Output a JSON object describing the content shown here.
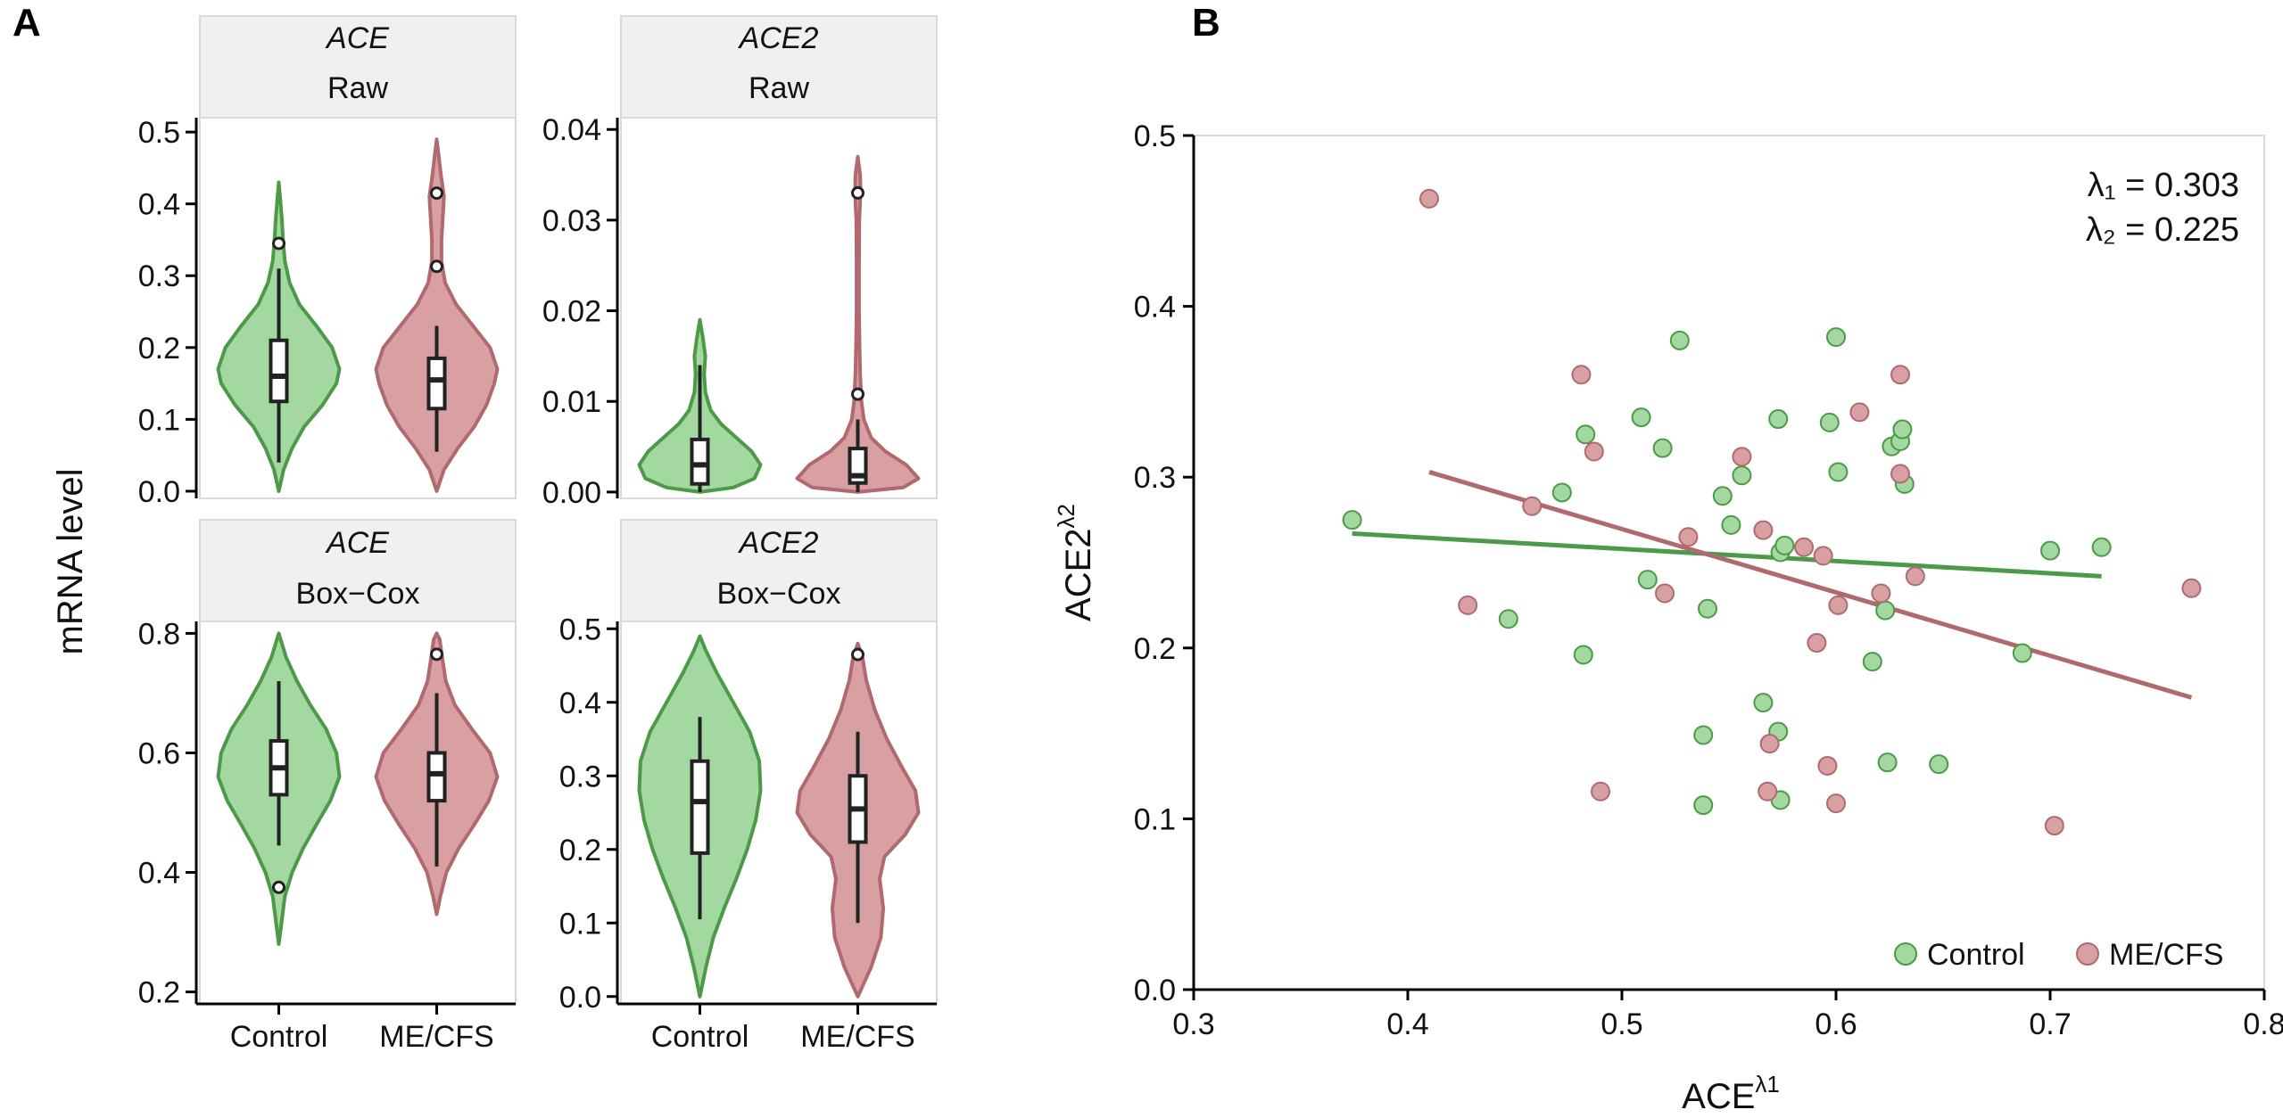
{
  "panel_a": {
    "letter": "A",
    "y_axis_title": "mRNA level",
    "group_labels": [
      "Control",
      "ME/CFS"
    ]
  },
  "panel_b": {
    "letter": "B",
    "lambda1_text": "λ₁ = 0.303",
    "lambda2_text": "λ₂ = 0.225",
    "x_axis_base": "ACE",
    "x_axis_sup": "λ1",
    "y_axis_base": "ACE2",
    "y_axis_sup": "λ2",
    "legend": [
      "Control",
      "ME/CFS"
    ]
  },
  "colors": {
    "control_fill": "#a3d9a0",
    "control_stroke": "#4c9a48",
    "mecfs_fill": "#d9a0a3",
    "mecfs_stroke": "#b06a6e"
  },
  "chart_data": [
    {
      "type": "violin",
      "gene": "ACE",
      "transform": "Raw",
      "categories": [
        "Control",
        "ME/CFS"
      ],
      "ylim": [
        -0.01,
        0.52
      ],
      "yticks": [
        0.0,
        0.1,
        0.2,
        0.3,
        0.4,
        0.5
      ],
      "ytick_labels": [
        "0.0",
        "0.1",
        "0.2",
        "0.3",
        "0.4",
        "0.5"
      ],
      "groups": [
        {
          "name": "Control",
          "min": 0.0,
          "max": 0.43,
          "density": [
            [
              0.0,
              0.0
            ],
            [
              0.03,
              0.08
            ],
            [
              0.06,
              0.22
            ],
            [
              0.09,
              0.42
            ],
            [
              0.12,
              0.72
            ],
            [
              0.15,
              0.95
            ],
            [
              0.17,
              1.0
            ],
            [
              0.2,
              0.88
            ],
            [
              0.23,
              0.62
            ],
            [
              0.26,
              0.34
            ],
            [
              0.29,
              0.18
            ],
            [
              0.32,
              0.1
            ],
            [
              0.35,
              0.07
            ],
            [
              0.38,
              0.05
            ],
            [
              0.41,
              0.02
            ],
            [
              0.43,
              0.0
            ]
          ],
          "box": {
            "q1": 0.125,
            "median": 0.16,
            "q3": 0.21,
            "whisker_low": 0.04,
            "whisker_high": 0.31
          },
          "outliers": [
            0.345
          ]
        },
        {
          "name": "ME/CFS",
          "min": 0.0,
          "max": 0.49,
          "density": [
            [
              0.0,
              0.0
            ],
            [
              0.03,
              0.12
            ],
            [
              0.06,
              0.35
            ],
            [
              0.09,
              0.62
            ],
            [
              0.12,
              0.82
            ],
            [
              0.15,
              0.95
            ],
            [
              0.17,
              1.0
            ],
            [
              0.2,
              0.88
            ],
            [
              0.23,
              0.6
            ],
            [
              0.26,
              0.32
            ],
            [
              0.29,
              0.14
            ],
            [
              0.32,
              0.08
            ],
            [
              0.35,
              0.08
            ],
            [
              0.38,
              0.1
            ],
            [
              0.41,
              0.12
            ],
            [
              0.44,
              0.07
            ],
            [
              0.47,
              0.03
            ],
            [
              0.49,
              0.0
            ]
          ],
          "box": {
            "q1": 0.115,
            "median": 0.155,
            "q3": 0.185,
            "whisker_low": 0.055,
            "whisker_high": 0.23
          },
          "outliers": [
            0.313,
            0.415
          ]
        }
      ]
    },
    {
      "type": "violin",
      "gene": "ACE2",
      "transform": "Raw",
      "categories": [
        "Control",
        "ME/CFS"
      ],
      "ylim": [
        -0.0007,
        0.0413
      ],
      "yticks": [
        0.0,
        0.01,
        0.02,
        0.03,
        0.04
      ],
      "ytick_labels": [
        "0.00",
        "0.01",
        "0.02",
        "0.03",
        "0.04"
      ],
      "groups": [
        {
          "name": "Control",
          "min": 0.0,
          "max": 0.019,
          "density": [
            [
              0.0,
              0.0
            ],
            [
              0.0005,
              0.55
            ],
            [
              0.0015,
              0.9
            ],
            [
              0.003,
              1.0
            ],
            [
              0.0045,
              0.85
            ],
            [
              0.006,
              0.6
            ],
            [
              0.0075,
              0.35
            ],
            [
              0.009,
              0.18
            ],
            [
              0.011,
              0.09
            ],
            [
              0.013,
              0.07
            ],
            [
              0.015,
              0.09
            ],
            [
              0.017,
              0.05
            ],
            [
              0.019,
              0.0
            ]
          ],
          "box": {
            "q1": 0.0009,
            "median": 0.003,
            "q3": 0.0058,
            "whisker_low": 0.0,
            "whisker_high": 0.014
          },
          "outliers": []
        },
        {
          "name": "ME/CFS",
          "min": 0.0,
          "max": 0.037,
          "density": [
            [
              0.0,
              0.0
            ],
            [
              0.0005,
              0.75
            ],
            [
              0.0015,
              1.0
            ],
            [
              0.003,
              0.8
            ],
            [
              0.0045,
              0.45
            ],
            [
              0.006,
              0.22
            ],
            [
              0.008,
              0.1
            ],
            [
              0.01,
              0.06
            ],
            [
              0.013,
              0.04
            ],
            [
              0.016,
              0.03
            ],
            [
              0.02,
              0.02
            ],
            [
              0.025,
              0.02
            ],
            [
              0.03,
              0.025
            ],
            [
              0.033,
              0.045
            ],
            [
              0.035,
              0.04
            ],
            [
              0.037,
              0.0
            ]
          ],
          "box": {
            "q1": 0.001,
            "median": 0.0018,
            "q3": 0.0048,
            "whisker_low": 0.0,
            "whisker_high": 0.008
          },
          "outliers": [
            0.0108,
            0.033
          ]
        }
      ]
    },
    {
      "type": "violin",
      "gene": "ACE",
      "transform": "Box−Cox",
      "categories": [
        "Control",
        "ME/CFS"
      ],
      "ylim": [
        0.18,
        0.82
      ],
      "yticks": [
        0.2,
        0.4,
        0.6,
        0.8
      ],
      "ytick_labels": [
        "0.2",
        "0.4",
        "0.6",
        "0.8"
      ],
      "groups": [
        {
          "name": "Control",
          "min": 0.28,
          "max": 0.8,
          "density": [
            [
              0.28,
              0.0
            ],
            [
              0.32,
              0.05
            ],
            [
              0.36,
              0.1
            ],
            [
              0.4,
              0.22
            ],
            [
              0.44,
              0.4
            ],
            [
              0.48,
              0.62
            ],
            [
              0.52,
              0.85
            ],
            [
              0.56,
              1.0
            ],
            [
              0.6,
              0.95
            ],
            [
              0.64,
              0.78
            ],
            [
              0.68,
              0.52
            ],
            [
              0.72,
              0.3
            ],
            [
              0.76,
              0.12
            ],
            [
              0.8,
              0.0
            ]
          ],
          "box": {
            "q1": 0.53,
            "median": 0.575,
            "q3": 0.62,
            "whisker_low": 0.445,
            "whisker_high": 0.72
          },
          "outliers": [
            0.375
          ]
        },
        {
          "name": "ME/CFS",
          "min": 0.33,
          "max": 0.8,
          "density": [
            [
              0.33,
              0.0
            ],
            [
              0.36,
              0.06
            ],
            [
              0.4,
              0.16
            ],
            [
              0.44,
              0.36
            ],
            [
              0.48,
              0.62
            ],
            [
              0.52,
              0.86
            ],
            [
              0.56,
              1.0
            ],
            [
              0.6,
              0.88
            ],
            [
              0.64,
              0.58
            ],
            [
              0.68,
              0.3
            ],
            [
              0.72,
              0.15
            ],
            [
              0.76,
              0.09
            ],
            [
              0.79,
              0.05
            ],
            [
              0.8,
              0.0
            ]
          ],
          "box": {
            "q1": 0.52,
            "median": 0.565,
            "q3": 0.6,
            "whisker_low": 0.41,
            "whisker_high": 0.7
          },
          "outliers": [
            0.765
          ]
        }
      ]
    },
    {
      "type": "violin",
      "gene": "ACE2",
      "transform": "Box−Cox",
      "categories": [
        "Control",
        "ME/CFS"
      ],
      "ylim": [
        -0.01,
        0.51
      ],
      "yticks": [
        0.0,
        0.1,
        0.2,
        0.3,
        0.4,
        0.5
      ],
      "ytick_labels": [
        "0.0",
        "0.1",
        "0.2",
        "0.3",
        "0.4",
        "0.5"
      ],
      "groups": [
        {
          "name": "Control",
          "min": 0.0,
          "max": 0.49,
          "density": [
            [
              0.0,
              0.0
            ],
            [
              0.04,
              0.1
            ],
            [
              0.08,
              0.22
            ],
            [
              0.12,
              0.4
            ],
            [
              0.16,
              0.6
            ],
            [
              0.2,
              0.78
            ],
            [
              0.24,
              0.92
            ],
            [
              0.28,
              1.0
            ],
            [
              0.32,
              0.98
            ],
            [
              0.36,
              0.82
            ],
            [
              0.4,
              0.55
            ],
            [
              0.44,
              0.28
            ],
            [
              0.47,
              0.1
            ],
            [
              0.49,
              0.0
            ]
          ],
          "box": {
            "q1": 0.195,
            "median": 0.265,
            "q3": 0.32,
            "whisker_low": 0.105,
            "whisker_high": 0.38
          },
          "outliers": []
        },
        {
          "name": "ME/CFS",
          "min": 0.0,
          "max": 0.48,
          "density": [
            [
              0.0,
              0.0
            ],
            [
              0.04,
              0.22
            ],
            [
              0.08,
              0.38
            ],
            [
              0.12,
              0.42
            ],
            [
              0.16,
              0.36
            ],
            [
              0.19,
              0.44
            ],
            [
              0.22,
              0.78
            ],
            [
              0.25,
              1.0
            ],
            [
              0.28,
              0.95
            ],
            [
              0.31,
              0.74
            ],
            [
              0.35,
              0.48
            ],
            [
              0.39,
              0.28
            ],
            [
              0.43,
              0.14
            ],
            [
              0.46,
              0.08
            ],
            [
              0.48,
              0.0
            ]
          ],
          "box": {
            "q1": 0.21,
            "median": 0.255,
            "q3": 0.3,
            "whisker_low": 0.1,
            "whisker_high": 0.36
          },
          "outliers": [
            0.465
          ]
        }
      ]
    },
    {
      "type": "scatter",
      "title": "",
      "xlabel": "ACE^λ1",
      "ylabel": "ACE2^λ2",
      "xlim": [
        0.3,
        0.8
      ],
      "ylim": [
        0.0,
        0.5
      ],
      "xticks": [
        0.3,
        0.4,
        0.5,
        0.6,
        0.7,
        0.8
      ],
      "xtick_labels": [
        "0.3",
        "0.4",
        "0.5",
        "0.6",
        "0.7",
        "0.8"
      ],
      "yticks": [
        0.0,
        0.1,
        0.2,
        0.3,
        0.4,
        0.5
      ],
      "ytick_labels": [
        "0.0",
        "0.1",
        "0.2",
        "0.3",
        "0.4",
        "0.5"
      ],
      "legend_position": "bottom-right",
      "series": [
        {
          "name": "Control",
          "points": [
            [
              0.374,
              0.275
            ],
            [
              0.447,
              0.217
            ],
            [
              0.472,
              0.291
            ],
            [
              0.483,
              0.325
            ],
            [
              0.482,
              0.196
            ],
            [
              0.509,
              0.335
            ],
            [
              0.512,
              0.24
            ],
            [
              0.519,
              0.317
            ],
            [
              0.527,
              0.38
            ],
            [
              0.538,
              0.149
            ],
            [
              0.54,
              0.223
            ],
            [
              0.538,
              0.108
            ],
            [
              0.547,
              0.289
            ],
            [
              0.551,
              0.272
            ],
            [
              0.556,
              0.301
            ],
            [
              0.566,
              0.168
            ],
            [
              0.573,
              0.334
            ],
            [
              0.573,
              0.151
            ],
            [
              0.574,
              0.111
            ],
            [
              0.574,
              0.256
            ],
            [
              0.576,
              0.26
            ],
            [
              0.597,
              0.332
            ],
            [
              0.6,
              0.382
            ],
            [
              0.601,
              0.303
            ],
            [
              0.617,
              0.192
            ],
            [
              0.623,
              0.222
            ],
            [
              0.624,
              0.133
            ],
            [
              0.626,
              0.318
            ],
            [
              0.63,
              0.321
            ],
            [
              0.631,
              0.328
            ],
            [
              0.632,
              0.296
            ],
            [
              0.648,
              0.132
            ],
            [
              0.687,
              0.197
            ],
            [
              0.7,
              0.257
            ],
            [
              0.724,
              0.259
            ]
          ]
        },
        {
          "name": "ME/CFS",
          "points": [
            [
              0.41,
              0.463
            ],
            [
              0.428,
              0.225
            ],
            [
              0.458,
              0.283
            ],
            [
              0.481,
              0.36
            ],
            [
              0.487,
              0.315
            ],
            [
              0.49,
              0.116
            ],
            [
              0.52,
              0.232
            ],
            [
              0.531,
              0.265
            ],
            [
              0.556,
              0.312
            ],
            [
              0.566,
              0.269
            ],
            [
              0.568,
              0.116
            ],
            [
              0.569,
              0.144
            ],
            [
              0.585,
              0.259
            ],
            [
              0.591,
              0.203
            ],
            [
              0.594,
              0.254
            ],
            [
              0.596,
              0.131
            ],
            [
              0.6,
              0.109
            ],
            [
              0.601,
              0.225
            ],
            [
              0.611,
              0.338
            ],
            [
              0.621,
              0.232
            ],
            [
              0.63,
              0.36
            ],
            [
              0.63,
              0.302
            ],
            [
              0.637,
              0.242
            ],
            [
              0.702,
              0.096
            ],
            [
              0.766,
              0.235
            ]
          ]
        }
      ],
      "fit_lines": [
        {
          "name": "Control",
          "x": [
            0.374,
            0.724
          ],
          "y": [
            0.267,
            0.242
          ]
        },
        {
          "name": "ME/CFS",
          "x": [
            0.41,
            0.766
          ],
          "y": [
            0.303,
            0.171
          ]
        }
      ]
    }
  ]
}
